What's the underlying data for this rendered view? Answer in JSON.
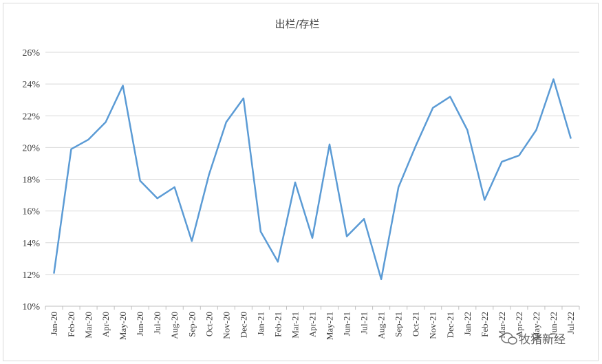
{
  "chart_data": {
    "type": "line",
    "title": "出栏/存栏",
    "xlabel": "",
    "ylabel": "",
    "categories": [
      "Jan-20",
      "Feb-20",
      "Mar-20",
      "Apr-20",
      "May-20",
      "Jun-20",
      "Jul-20",
      "Aug-20",
      "Sep-20",
      "Oct-20",
      "Nov-20",
      "Dec-20",
      "Jan-21",
      "Feb-21",
      "Mar-21",
      "Apr-21",
      "May-21",
      "Jun-21",
      "Jul-21",
      "Aug-21",
      "Sep-21",
      "Oct-21",
      "Nov-21",
      "Dec-21",
      "Jan-22",
      "Feb-22",
      "Mar-22",
      "Apr-22",
      "May-22",
      "Jun-22",
      "Jul-22"
    ],
    "series": [
      {
        "values": [
          12.1,
          19.9,
          20.5,
          21.6,
          23.9,
          17.9,
          16.8,
          17.5,
          14.1,
          18.3,
          21.6,
          23.1,
          14.7,
          12.8,
          17.8,
          14.3,
          20.2,
          14.4,
          15.5,
          11.7,
          17.5,
          20.1,
          22.5,
          23.2,
          21.1,
          16.7,
          19.1,
          19.5,
          21.1,
          24.3,
          20.6
        ]
      }
    ],
    "ylim": [
      10,
      26
    ],
    "yticks": [
      "10%",
      "12%",
      "14%",
      "16%",
      "18%",
      "20%",
      "22%",
      "24%",
      "26%"
    ],
    "y_unit": "%",
    "grid": true,
    "legend": "none",
    "colors": {
      "series": "#5b9bd5"
    }
  },
  "watermark": {
    "text": "牧猪新经",
    "icon": "wechat-bubble-icon"
  }
}
